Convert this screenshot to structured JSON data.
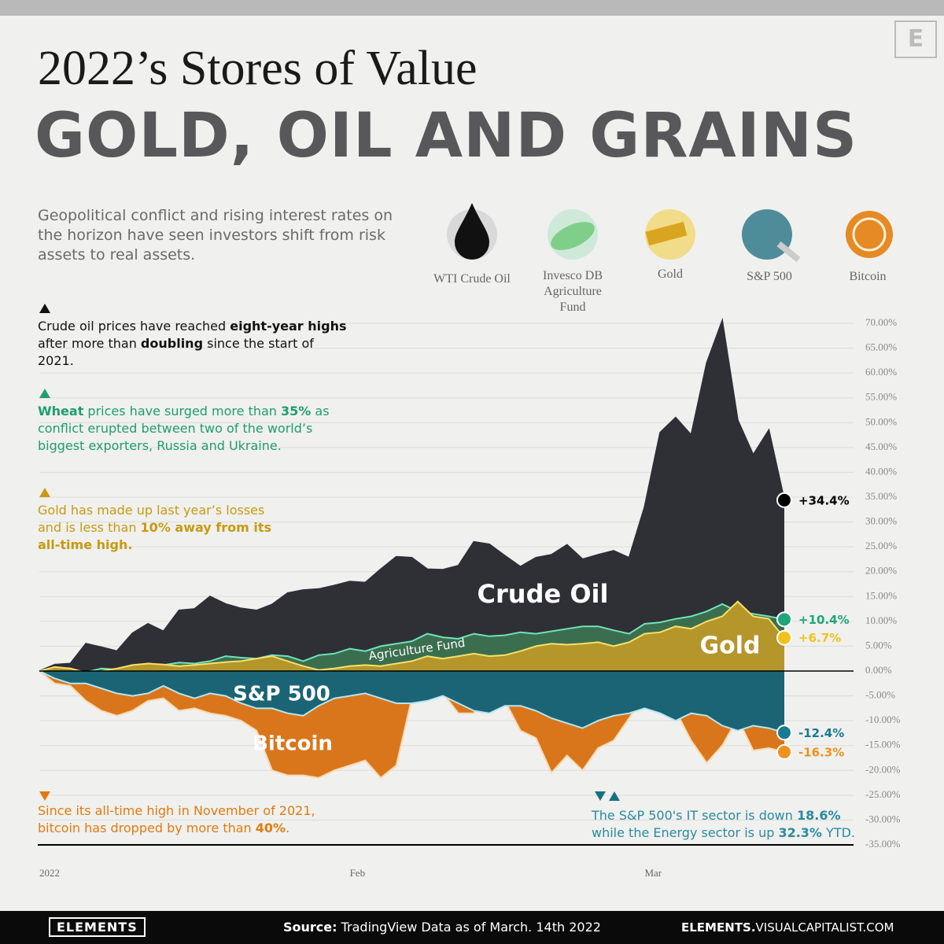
{
  "header": {
    "title": "2022’s Stores of Value",
    "headline": "GOLD, OIL AND GRAINS",
    "subtitle": "Geopolitical conflict and rising interest rates on the horizon have seen investors shift from risk assets to real assets.",
    "logo": "E"
  },
  "legend": [
    "WTI Crude Oil",
    "Invesco DB Agriculture Fund",
    "Gold",
    "S&P 500",
    "Bitcoin"
  ],
  "annotations": [
    {
      "parts": [
        "Crude oil prices have reached ",
        "eight-year highs",
        " after more than ",
        "doubling",
        " since the start of 2021."
      ]
    },
    {
      "parts": [
        "",
        "Wheat",
        " prices have surged more than ",
        "35%",
        " as conflict erupted between two of the world’s biggest exporters, Russia and Ukraine."
      ]
    },
    {
      "parts": [
        "Gold has made up last year’s losses and is less than ",
        "10% away from its all-time high."
      ]
    },
    {
      "parts": [
        "Since its all-time high in November of 2021, bitcoin has dropped by more than ",
        "40%",
        "."
      ]
    },
    {
      "parts": [
        "The S&P 500's IT sector is down ",
        "18.6%",
        " while the Energy sector is up ",
        "32.3%",
        " YTD."
      ]
    }
  ],
  "chart_data": {
    "type": "area",
    "categories": [
      "2022",
      null,
      null,
      null,
      null,
      null,
      null,
      null,
      null,
      null,
      null,
      null,
      null,
      null,
      null,
      null,
      null,
      null,
      null,
      null,
      "Feb",
      null,
      null,
      null,
      null,
      null,
      null,
      null,
      null,
      null,
      null,
      null,
      null,
      null,
      null,
      null,
      null,
      null,
      null,
      "Mar",
      null,
      null,
      null,
      null,
      null,
      null,
      null,
      null,
      null
    ],
    "ylim": [
      -35,
      70
    ],
    "yticks": [
      {
        "value": 70,
        "label": "70.00%"
      },
      {
        "value": 65,
        "label": "65.00%"
      },
      {
        "value": 60,
        "label": "60.00%"
      },
      {
        "value": 55,
        "label": "55.00%"
      },
      {
        "value": 50,
        "label": "50.00%"
      },
      {
        "value": 45,
        "label": "45.00%"
      },
      {
        "value": 40,
        "label": "40.00%"
      },
      {
        "value": 35,
        "label": "35.00%"
      },
      {
        "value": 30,
        "label": "30.00%"
      },
      {
        "value": 25,
        "label": "25.00%"
      },
      {
        "value": 20,
        "label": "20.00%"
      },
      {
        "value": 15,
        "label": "15.00%"
      },
      {
        "value": 10,
        "label": "10.00%"
      },
      {
        "value": 5,
        "label": "5.00%"
      },
      {
        "value": 0,
        "label": "0.00%"
      },
      {
        "value": -5,
        "label": "-5.00%"
      },
      {
        "value": -10,
        "label": "-10.00%"
      },
      {
        "value": -15,
        "label": "-15.00%"
      },
      {
        "value": -20,
        "label": "-20.00%"
      },
      {
        "value": -25,
        "label": "-25.00%"
      },
      {
        "value": -30,
        "label": "-30.00%"
      },
      {
        "value": -35,
        "label": "-35.00%"
      }
    ],
    "grid": true,
    "series": [
      {
        "name": "Crude Oil",
        "color": "#2f2f36",
        "line_color": "#2f2f36",
        "marker_color": "#000000",
        "end_label": "+34.4%",
        "values": [
          0,
          1.3,
          1.5,
          5.5,
          4.8,
          4.0,
          7.6,
          9.5,
          8.0,
          12.2,
          12.5,
          15.0,
          13.5,
          12.6,
          12.2,
          13.4,
          15.7,
          16.3,
          16.5,
          17.2,
          18.0,
          17.8,
          20.5,
          23.0,
          22.8,
          20.5,
          20.4,
          21.2,
          26.0,
          25.5,
          23.2,
          21.0,
          22.8,
          23.4,
          25.4,
          22.5,
          23.4,
          24.2,
          22.8,
          33.0,
          48.0,
          51.0,
          47.5,
          62.0,
          70.5,
          50.5,
          43.5,
          48.5,
          34.4
        ]
      },
      {
        "name": "Agriculture Fund",
        "color": "#3b6e4f",
        "line_color": "#6fe3b8",
        "marker_color": "#1fa67a",
        "end_label": "+10.4%",
        "values": [
          0,
          0.5,
          0.3,
          -0.2,
          0.5,
          0.3,
          1.0,
          1.5,
          1.2,
          1.7,
          1.5,
          2.0,
          3.0,
          2.7,
          2.5,
          3.2,
          3.0,
          2.0,
          3.2,
          3.5,
          4.5,
          4.0,
          5.0,
          5.5,
          6.0,
          7.5,
          6.8,
          6.5,
          7.5,
          7.0,
          7.2,
          7.8,
          7.5,
          8.0,
          8.5,
          9.0,
          9.0,
          8.2,
          7.5,
          9.5,
          9.8,
          10.5,
          11.0,
          12.0,
          13.5,
          12.0,
          11.5,
          11.0,
          10.4
        ]
      },
      {
        "name": "Gold",
        "color": "#b5962b",
        "line_color": "#f7e06a",
        "marker_color": "#f2c21a",
        "end_label": "+6.7%",
        "values": [
          0,
          0.8,
          0.5,
          -0.3,
          0,
          0.5,
          1.2,
          1.5,
          1.3,
          1.0,
          1.2,
          1.5,
          1.8,
          2.0,
          2.5,
          3.0,
          2.0,
          1.0,
          0.2,
          0.5,
          1.0,
          1.2,
          1.0,
          1.5,
          2.0,
          3.0,
          2.5,
          3.0,
          3.5,
          3.0,
          3.2,
          4.0,
          5.0,
          5.5,
          5.3,
          5.5,
          5.8,
          5.0,
          5.8,
          7.5,
          7.8,
          9.0,
          8.5,
          10.0,
          11.0,
          14.0,
          11.0,
          10.5,
          6.7
        ]
      },
      {
        "name": "Bitcoin",
        "color": "#d9761b",
        "line_color": "#f8d9b0",
        "marker_color": "#f0901e",
        "end_label": "-16.3%",
        "values": [
          0,
          -2.5,
          -3,
          -6,
          -8,
          -9,
          -8,
          -6,
          -5.5,
          -8,
          -7.5,
          -8.5,
          -9,
          -10,
          -12,
          -20,
          -21,
          -21,
          -21.5,
          -20,
          -19,
          -18,
          -21.5,
          -19,
          -5.5,
          -5.0,
          -4.5,
          -8.5,
          -8.5,
          -4.5,
          -6.0,
          -12.0,
          -13.5,
          -20.5,
          -17.0,
          -20.0,
          -15.5,
          -14.0,
          -9.5,
          -4.5,
          -5.5,
          -8.0,
          -14.0,
          -18.5,
          -15.0,
          -9.5,
          -16.0,
          -15.5,
          -16.3
        ]
      },
      {
        "name": "S&P 500",
        "color": "#1b6475",
        "line_color": "#b6e6f0",
        "marker_color": "#1a7a91",
        "end_label": "-12.4%",
        "values": [
          0,
          -1.5,
          -2.5,
          -2.5,
          -3.5,
          -4.5,
          -5,
          -4.5,
          -3.0,
          -4.5,
          -5.5,
          -4.5,
          -5.0,
          -6.5,
          -7.5,
          -7.5,
          -8.5,
          -9.0,
          -7.0,
          -5.5,
          -5.0,
          -4.5,
          -5.5,
          -6.5,
          -6.5,
          -6.0,
          -5.0,
          -6.5,
          -8.0,
          -8.5,
          -7.0,
          -7.0,
          -8.0,
          -9.5,
          -10.5,
          -11.5,
          -10.0,
          -9.0,
          -8.5,
          -7.5,
          -8.5,
          -10.0,
          -8.5,
          -9.0,
          -11.0,
          -12.0,
          -11.0,
          -11.5,
          -12.4
        ]
      }
    ]
  },
  "footer": {
    "brand": "ELEMENTS",
    "source_label": "Source:",
    "source": "TradingView Data as of March. 14th 2022",
    "site_bold": "ELEMENTS.",
    "site": "VISUALCAPITALIST.COM"
  }
}
